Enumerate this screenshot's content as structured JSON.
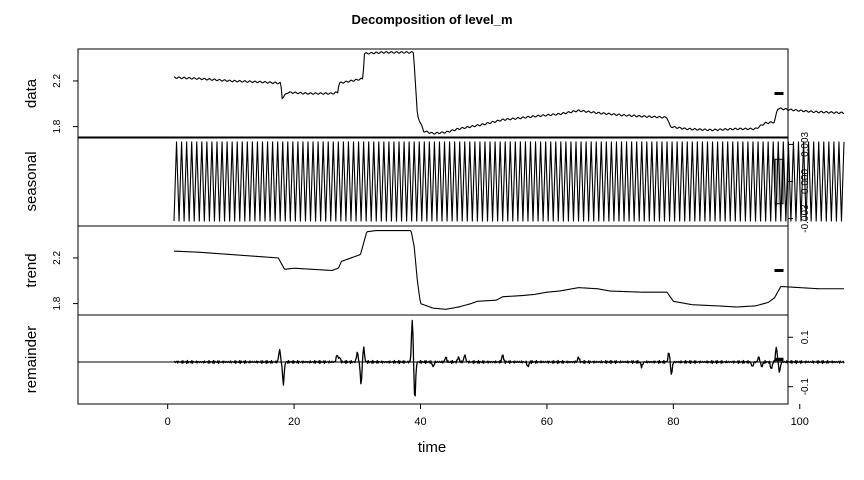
{
  "chart_data": {
    "type": "line",
    "title": "Decomposition of level_m",
    "xlabel": "time",
    "xlim": [
      1,
      107
    ],
    "x_ticks": [
      0,
      20,
      40,
      60,
      80,
      100
    ],
    "x_tick_labels": [
      "0",
      "20",
      "40",
      "60",
      "80",
      "100"
    ],
    "panels": [
      {
        "name": "data",
        "ylim": [
          1.7,
          2.48
        ],
        "y_ticks": [
          1.8,
          2.2
        ],
        "y_tick_labels": [
          "1.8",
          "2.2"
        ],
        "right_axis": false,
        "series": {
          "x": [
            1,
            5,
            10,
            15,
            17.9,
            18.1,
            19,
            22,
            26,
            26.9,
            27.1,
            29,
            30.9,
            31.1,
            34,
            38.5,
            38.9,
            39.5,
            40.5,
            42,
            44,
            46,
            48,
            50,
            53,
            55,
            58,
            62,
            65,
            68,
            72,
            75,
            79,
            79.5,
            82,
            86,
            90,
            93,
            94.5,
            96,
            96.5,
            98,
            102,
            107
          ],
          "y": [
            2.23,
            2.22,
            2.2,
            2.19,
            2.18,
            2.05,
            2.1,
            2.09,
            2.09,
            2.1,
            2.18,
            2.2,
            2.22,
            2.44,
            2.45,
            2.45,
            2.45,
            1.9,
            1.76,
            1.74,
            1.75,
            1.78,
            1.8,
            1.82,
            1.86,
            1.87,
            1.89,
            1.91,
            1.94,
            1.92,
            1.9,
            1.89,
            1.88,
            1.8,
            1.78,
            1.77,
            1.78,
            1.78,
            1.83,
            1.84,
            1.96,
            1.95,
            1.93,
            1.92
          ]
        },
        "ripple": {
          "amplitude": 0.007,
          "period": 0.8
        },
        "scale_bar_height": 0.005
      },
      {
        "name": "seasonal",
        "ylim": [
          -0.0036,
          0.0036
        ],
        "y_ticks": [
          -0.003,
          0.0,
          0.003
        ],
        "y_tick_labels": [
          "-0.003",
          "0.000",
          "0.003"
        ],
        "right_axis": true,
        "seasonal_amplitude": 0.0032,
        "seasonal_period": 0.8,
        "scale_bar_height": 0.0036
      },
      {
        "name": "trend",
        "ylim": [
          1.7,
          2.48
        ],
        "y_ticks": [
          1.8,
          2.2
        ],
        "y_tick_labels": [
          "1.8",
          "2.2"
        ],
        "right_axis": false,
        "series": {
          "x": [
            1,
            5,
            10,
            15,
            17.5,
            18.5,
            20,
            23,
            26,
            27,
            27.5,
            29,
            30.5,
            31.5,
            33,
            36,
            38.5,
            39,
            39.5,
            40,
            42,
            44,
            46,
            48,
            49,
            52,
            53,
            56,
            58,
            60,
            62,
            65,
            68,
            70,
            75,
            79,
            80,
            83,
            87,
            90,
            93,
            95,
            96,
            97,
            100,
            103,
            107
          ],
          "y": [
            2.26,
            2.25,
            2.23,
            2.21,
            2.2,
            2.1,
            2.11,
            2.1,
            2.09,
            2.11,
            2.17,
            2.2,
            2.23,
            2.43,
            2.44,
            2.44,
            2.44,
            2.3,
            2.0,
            1.8,
            1.76,
            1.75,
            1.77,
            1.8,
            1.82,
            1.83,
            1.86,
            1.87,
            1.88,
            1.9,
            1.91,
            1.94,
            1.93,
            1.91,
            1.9,
            1.9,
            1.82,
            1.79,
            1.78,
            1.77,
            1.78,
            1.81,
            1.85,
            1.95,
            1.94,
            1.93,
            1.93
          ]
        },
        "scale_bar_height": 0.005
      },
      {
        "name": "remainder",
        "ylim": [
          -0.17,
          0.19
        ],
        "y_ticks": [
          -0.1,
          0.1
        ],
        "y_tick_labels": [
          "-0.1",
          "0.1"
        ],
        "right_axis": true,
        "baseline": 0,
        "noise_amplitude": 0.006,
        "spikes": [
          {
            "x": 17.7,
            "y": 0.05
          },
          {
            "x": 18.3,
            "y": -0.09
          },
          {
            "x": 26.8,
            "y": 0.03
          },
          {
            "x": 27.2,
            "y": 0.02
          },
          {
            "x": 30.0,
            "y": 0.04
          },
          {
            "x": 30.6,
            "y": -0.09
          },
          {
            "x": 31.0,
            "y": 0.06
          },
          {
            "x": 38.7,
            "y": 0.17
          },
          {
            "x": 39.1,
            "y": -0.15
          },
          {
            "x": 42.0,
            "y": -0.02
          },
          {
            "x": 44.0,
            "y": 0.02
          },
          {
            "x": 46.0,
            "y": 0.02
          },
          {
            "x": 47.0,
            "y": 0.03
          },
          {
            "x": 53.0,
            "y": 0.03
          },
          {
            "x": 57.0,
            "y": -0.02
          },
          {
            "x": 65.0,
            "y": 0.02
          },
          {
            "x": 75.0,
            "y": -0.02
          },
          {
            "x": 79.3,
            "y": 0.04
          },
          {
            "x": 79.7,
            "y": -0.05
          },
          {
            "x": 92.5,
            "y": -0.02
          },
          {
            "x": 93.5,
            "y": 0.02
          },
          {
            "x": 94.0,
            "y": -0.02
          },
          {
            "x": 95.5,
            "y": -0.03
          },
          {
            "x": 96.3,
            "y": 0.06
          },
          {
            "x": 96.8,
            "y": -0.04
          }
        ],
        "scale_bar_height": 0.01
      }
    ]
  }
}
